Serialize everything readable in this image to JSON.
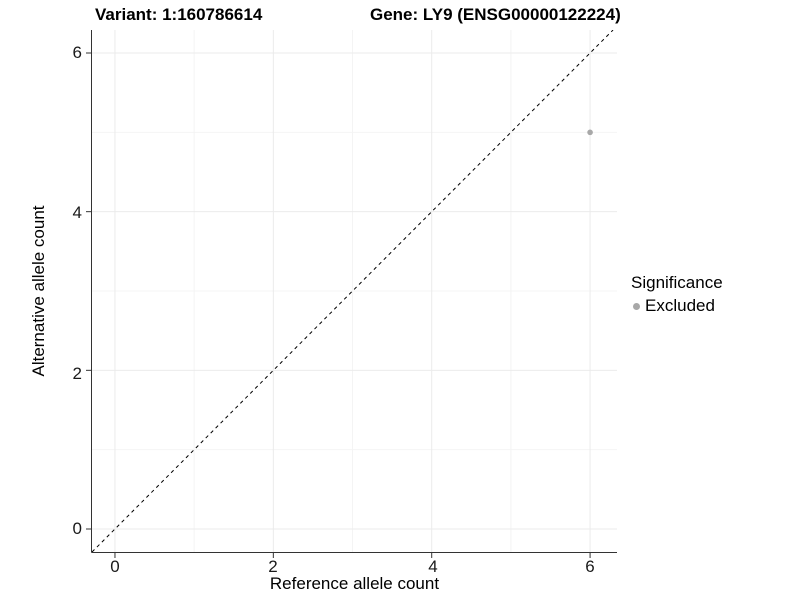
{
  "titles": {
    "variant": "Variant: 1:160786614",
    "gene": "Gene: LY9 (ENSG00000122224)"
  },
  "chart_data": {
    "type": "scatter",
    "title_left": "Variant: 1:160786614",
    "title_right": "Gene: LY9 (ENSG00000122224)",
    "xlabel": "Reference allele count",
    "ylabel": "Alternative allele count",
    "xlim": [
      -0.29,
      6.34
    ],
    "ylim": [
      -0.29,
      6.29
    ],
    "x_ticks": [
      0,
      2,
      4,
      6
    ],
    "y_ticks": [
      0,
      2,
      4,
      6
    ],
    "x_tick_labels": [
      "0",
      "2",
      "4",
      "6"
    ],
    "y_tick_labels": [
      "0",
      "2",
      "4",
      "6"
    ],
    "x_minor_gridlines": [
      1,
      3,
      5
    ],
    "y_minor_gridlines": [
      1,
      3,
      5
    ],
    "grid": true,
    "identity_line": {
      "style": "dashed",
      "from": [
        -0.29,
        -0.29
      ],
      "to": [
        6.29,
        6.29
      ]
    },
    "points": [
      {
        "x": 6,
        "y": 5,
        "series": "Excluded"
      }
    ],
    "legend": {
      "title": "Significance",
      "position": "right",
      "entries": [
        {
          "label": "Excluded",
          "color": "#a8a8a8"
        }
      ]
    }
  },
  "colors": {
    "point": "#a8a8a8",
    "grid_major": "#ebebeb",
    "grid_minor": "#f4f4f4",
    "axis_line": "#333333",
    "identity_line": "#000000",
    "tick_mark": "#333333"
  }
}
